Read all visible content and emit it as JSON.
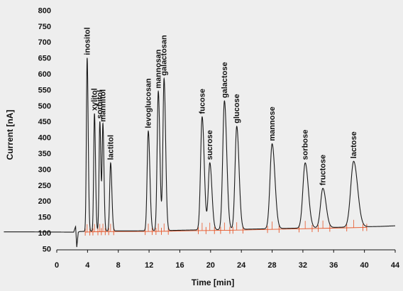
{
  "chart_data": {
    "type": "line",
    "title": "",
    "xlabel": "Time [min]",
    "ylabel": "Current [nA]",
    "xlim": [
      0,
      44
    ],
    "ylim": [
      30,
      800
    ],
    "x_ticks": [
      0,
      4,
      8,
      12,
      16,
      20,
      24,
      28,
      32,
      36,
      40,
      44
    ],
    "y_ticks": [
      50,
      100,
      150,
      200,
      250,
      300,
      350,
      400,
      450,
      500,
      550,
      600,
      650,
      700,
      750,
      800
    ],
    "grid": false,
    "baseline": {
      "x": [
        -4,
        2.2,
        2.45,
        2.6,
        2.8,
        3.0,
        6,
        10,
        14,
        18,
        22,
        26,
        30,
        34,
        38,
        42,
        44
      ],
      "y": [
        103,
        102,
        120,
        55,
        102,
        104,
        106,
        106,
        107,
        109,
        110,
        112,
        114,
        116,
        118,
        120,
        122
      ]
    },
    "peaks": [
      {
        "name": "inositol",
        "time": 3.95,
        "height": 650,
        "width": 0.1
      },
      {
        "name": "xylitol",
        "time": 4.9,
        "height": 475,
        "width": 0.1
      },
      {
        "name": "sorbitol",
        "time": 5.6,
        "height": 450,
        "width": 0.1
      },
      {
        "name": "mannitol",
        "time": 6.0,
        "height": 440,
        "width": 0.1
      },
      {
        "name": "lactitol",
        "time": 7.0,
        "height": 320,
        "width": 0.12
      },
      {
        "name": "levoglucosan",
        "time": 11.9,
        "height": 420,
        "width": 0.15
      },
      {
        "name": "mannosan",
        "time": 13.2,
        "height": 545,
        "width": 0.15
      },
      {
        "name": "galactosan",
        "time": 13.95,
        "height": 585,
        "width": 0.15
      },
      {
        "name": "fucose",
        "time": 18.9,
        "height": 465,
        "width": 0.2
      },
      {
        "name": "sucrose",
        "time": 19.9,
        "height": 320,
        "width": 0.2
      },
      {
        "name": "galactose",
        "time": 21.8,
        "height": 515,
        "width": 0.22
      },
      {
        "name": "glucose",
        "time": 23.4,
        "height": 435,
        "width": 0.22
      },
      {
        "name": "mannose",
        "time": 28.0,
        "height": 380,
        "width": 0.27
      },
      {
        "name": "sorbose",
        "time": 32.3,
        "height": 320,
        "width": 0.3
      },
      {
        "name": "fructose",
        "time": 34.6,
        "height": 240,
        "width": 0.3
      },
      {
        "name": "lactose",
        "time": 38.6,
        "height": 325,
        "width": 0.38
      }
    ],
    "integration_marks": [
      3.7,
      4.3,
      4.7,
      5.35,
      5.8,
      6.3,
      6.75,
      7.4,
      11.5,
      12.4,
      12.9,
      13.6,
      14.5,
      18.4,
      19.4,
      20.5,
      21.3,
      22.5,
      22.9,
      24.2,
      27.4,
      28.9,
      31.5,
      33.2,
      34.0,
      35.5,
      37.7,
      39.8,
      40.3
    ],
    "colors": {
      "trace": "#1a1a1a",
      "integration": "#e8572a",
      "background": "#eeeeee"
    }
  }
}
